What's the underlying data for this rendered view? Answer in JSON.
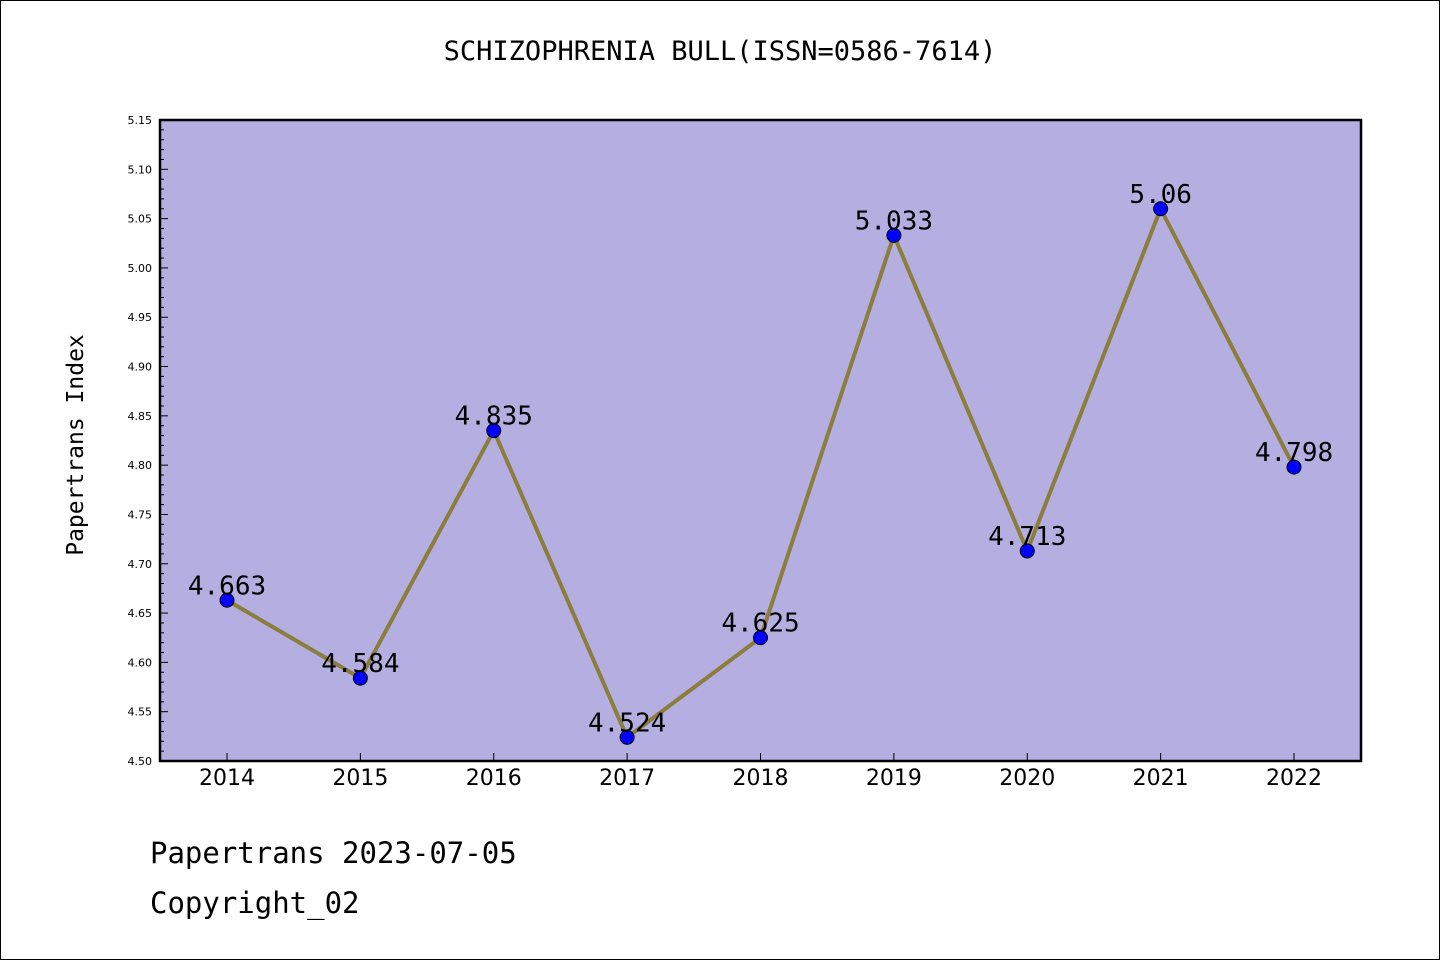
{
  "chart_data": {
    "type": "line",
    "title": "SCHIZOPHRENIA BULL(ISSN=0586-7614)",
    "xlabel": "",
    "ylabel": "Papertrans Index",
    "categories": [
      "2014",
      "2015",
      "2016",
      "2017",
      "2018",
      "2019",
      "2020",
      "2021",
      "2022"
    ],
    "values": [
      4.663,
      4.584,
      4.835,
      4.524,
      4.625,
      5.033,
      4.713,
      5.06,
      4.798
    ],
    "value_labels": [
      "4.663",
      "4.584",
      "4.835",
      "4.524",
      "4.625",
      "5.033",
      "4.713",
      "5.06",
      "4.798"
    ],
    "ylim": [
      4.5,
      5.15
    ],
    "yticks": [
      "4.50",
      "4.55",
      "4.60",
      "4.65",
      "4.70",
      "4.75",
      "4.80",
      "4.85",
      "4.90",
      "4.95",
      "5.00",
      "5.05",
      "5.10",
      "5.15"
    ],
    "grid": false,
    "colors": {
      "plot_background": "#b4aee1",
      "line": "#8b7d3c",
      "marker": "#0000ff"
    }
  },
  "footer": {
    "line1": "Papertrans 2023-07-05",
    "line2": "Copyright_02"
  }
}
